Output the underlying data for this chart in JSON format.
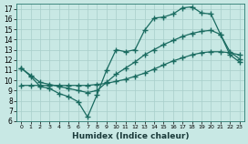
{
  "xlabel": "Humidex (Indice chaleur)",
  "bg_color": "#c8e8e4",
  "grid_color": "#a8ceca",
  "line_color": "#1a6b60",
  "marker": "+",
  "markersize": 4,
  "linewidth": 0.9,
  "xlim": [
    -0.5,
    23.5
  ],
  "ylim": [
    6,
    17.5
  ],
  "xticks": [
    0,
    1,
    2,
    3,
    4,
    5,
    6,
    7,
    8,
    9,
    10,
    11,
    12,
    13,
    14,
    15,
    16,
    17,
    18,
    19,
    20,
    21,
    22,
    23
  ],
  "yticks": [
    6,
    7,
    8,
    9,
    10,
    11,
    12,
    13,
    14,
    15,
    16,
    17
  ],
  "lines": [
    {
      "x": [
        0,
        1,
        2,
        3,
        4,
        5,
        6,
        7,
        8,
        9,
        10,
        11,
        12,
        13,
        14,
        15,
        16,
        17,
        18,
        19,
        20,
        21,
        22,
        23
      ],
      "y": [
        11.2,
        10.4,
        9.4,
        9.2,
        8.7,
        8.4,
        7.9,
        6.4,
        8.6,
        11.0,
        13.0,
        12.8,
        13.0,
        14.9,
        16.1,
        16.2,
        16.5,
        17.1,
        17.2,
        16.6,
        16.5,
        14.5,
        12.5,
        11.8
      ]
    },
    {
      "x": [
        0,
        1,
        2,
        3,
        4,
        5,
        6,
        7,
        8,
        9,
        10,
        11,
        12,
        13,
        14,
        15,
        16,
        17,
        18,
        19,
        20,
        21,
        22,
        23
      ],
      "y": [
        11.2,
        10.5,
        9.8,
        9.6,
        9.4,
        9.2,
        9.0,
        8.8,
        9.0,
        9.8,
        10.6,
        11.2,
        11.8,
        12.5,
        13.0,
        13.5,
        13.9,
        14.3,
        14.6,
        14.8,
        14.9,
        14.5,
        12.8,
        12.1
      ]
    },
    {
      "x": [
        0,
        1,
        2,
        3,
        4,
        5,
        6,
        7,
        8,
        9,
        10,
        11,
        12,
        13,
        14,
        15,
        16,
        17,
        18,
        19,
        20,
        21,
        22,
        23
      ],
      "y": [
        9.5,
        9.5,
        9.5,
        9.5,
        9.5,
        9.5,
        9.5,
        9.5,
        9.6,
        9.7,
        9.9,
        10.1,
        10.4,
        10.7,
        11.1,
        11.5,
        11.9,
        12.2,
        12.5,
        12.7,
        12.8,
        12.8,
        12.7,
        12.5
      ]
    }
  ]
}
